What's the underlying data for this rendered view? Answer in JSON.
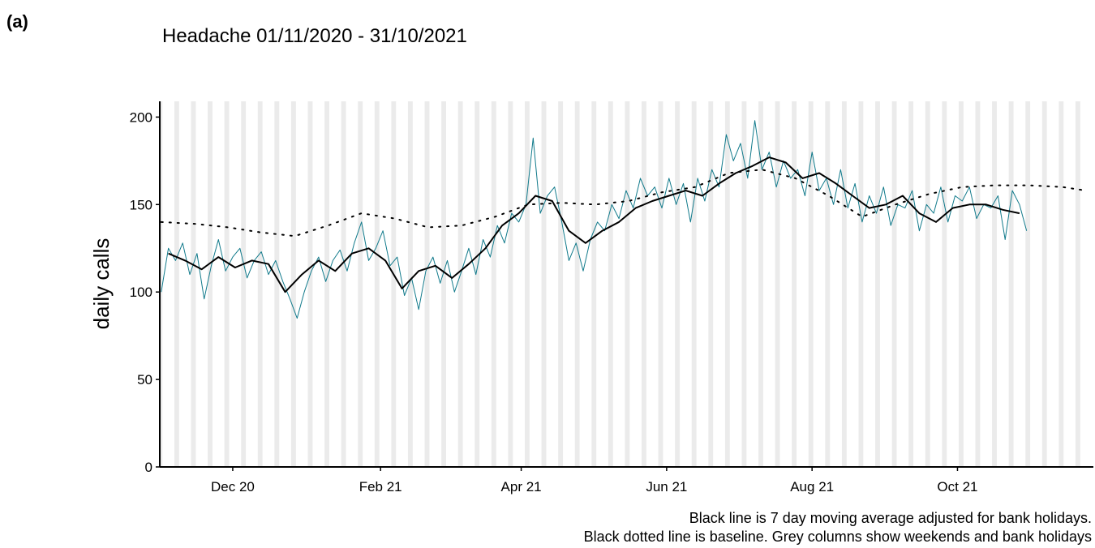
{
  "panel_label": "(a)",
  "chart_data": {
    "type": "line",
    "title": "Headache 01/11/2020 - 31/10/2021",
    "ylabel": "daily calls",
    "notes": [
      "Black line is 7 day moving average adjusted for bank holidays.",
      "Black dotted line is baseline. Grey columns show weekends and bank holidays"
    ],
    "xlim": [
      -0.6,
      391
    ],
    "xticks": [
      {
        "value": 30,
        "label": "Dec 20"
      },
      {
        "value": 92,
        "label": "Feb 21"
      },
      {
        "value": 151,
        "label": "Apr 21"
      },
      {
        "value": 212,
        "label": "Jun 21"
      },
      {
        "value": 273,
        "label": "Aug 21"
      },
      {
        "value": 334,
        "label": "Oct 21"
      }
    ],
    "ylim": [
      0,
      209
    ],
    "yticks": [
      0,
      50,
      100,
      150,
      200
    ],
    "weekend_shading": true,
    "series": [
      {
        "color": "#117a8b",
        "width": 1,
        "dash": "solid",
        "x": [
          0,
          3,
          6,
          9,
          12,
          15,
          18,
          21,
          24,
          27,
          30,
          33,
          36,
          39,
          42,
          45,
          48,
          51,
          54,
          57,
          60,
          63,
          66,
          69,
          72,
          75,
          78,
          81,
          84,
          87,
          90,
          93,
          96,
          99,
          102,
          105,
          108,
          111,
          114,
          117,
          120,
          123,
          126,
          129,
          132,
          135,
          138,
          141,
          144,
          147,
          150,
          153,
          156,
          159,
          162,
          165,
          168,
          171,
          174,
          177,
          180,
          183,
          186,
          189,
          192,
          195,
          198,
          201,
          204,
          207,
          210,
          213,
          216,
          219,
          222,
          225,
          228,
          231,
          234,
          237,
          240,
          243,
          246,
          249,
          252,
          255,
          258,
          261,
          264,
          267,
          270,
          273,
          276,
          279,
          282,
          285,
          288,
          291,
          294,
          297,
          300,
          303,
          306,
          309,
          312,
          315,
          318,
          321,
          324,
          327,
          330,
          333,
          336,
          339,
          342,
          345,
          348,
          351,
          354,
          357,
          360,
          363
        ],
        "values": [
          100,
          125,
          118,
          128,
          110,
          122,
          96,
          115,
          130,
          112,
          120,
          125,
          108,
          118,
          123,
          110,
          118,
          106,
          96,
          85,
          100,
          112,
          120,
          106,
          118,
          124,
          112,
          128,
          140,
          118,
          125,
          135,
          115,
          120,
          98,
          108,
          90,
          112,
          120,
          105,
          118,
          100,
          112,
          125,
          110,
          130,
          120,
          138,
          128,
          145,
          140,
          150,
          188,
          145,
          155,
          160,
          140,
          118,
          128,
          112,
          130,
          140,
          135,
          150,
          142,
          158,
          148,
          165,
          155,
          160,
          148,
          165,
          150,
          162,
          140,
          165,
          152,
          170,
          160,
          190,
          175,
          185,
          165,
          198,
          170,
          180,
          160,
          175,
          165,
          170,
          155,
          180,
          158,
          165,
          150,
          170,
          148,
          162,
          140,
          155,
          145,
          160,
          138,
          150,
          148,
          158,
          135,
          150,
          145,
          160,
          140,
          155,
          152,
          160,
          142,
          150,
          148,
          155,
          130,
          158,
          150,
          135
        ]
      },
      {
        "color": "#000000",
        "width": 2,
        "dash": "solid",
        "x": [
          3,
          10,
          17,
          24,
          31,
          38,
          45,
          52,
          59,
          66,
          73,
          80,
          87,
          94,
          101,
          108,
          115,
          122,
          129,
          136,
          143,
          150,
          157,
          164,
          171,
          178,
          185,
          192,
          199,
          206,
          213,
          220,
          227,
          234,
          241,
          248,
          255,
          262,
          269,
          276,
          283,
          290,
          297,
          304,
          311,
          318,
          325,
          332,
          339,
          346,
          353,
          360
        ],
        "values": [
          122,
          118,
          113,
          120,
          114,
          118,
          116,
          100,
          110,
          118,
          112,
          122,
          125,
          118,
          102,
          112,
          115,
          108,
          116,
          125,
          138,
          145,
          155,
          152,
          135,
          128,
          135,
          140,
          148,
          152,
          155,
          158,
          155,
          162,
          168,
          172,
          177,
          174,
          165,
          168,
          162,
          155,
          148,
          150,
          155,
          145,
          140,
          148,
          150,
          150,
          147,
          145
        ]
      },
      {
        "color": "#000000",
        "width": 2,
        "dash": "dotted",
        "x": [
          0,
          14,
          28,
          42,
          56,
          70,
          84,
          98,
          112,
          126,
          140,
          154,
          168,
          182,
          196,
          210,
          224,
          238,
          252,
          266,
          280,
          294,
          308,
          322,
          336,
          350,
          364,
          378,
          388
        ],
        "values": [
          140,
          139,
          137,
          134,
          132,
          138,
          145,
          142,
          137,
          138,
          143,
          150,
          151,
          150,
          152,
          157,
          160,
          168,
          170,
          165,
          155,
          143,
          150,
          156,
          160,
          161,
          161,
          160,
          158
        ]
      }
    ]
  }
}
